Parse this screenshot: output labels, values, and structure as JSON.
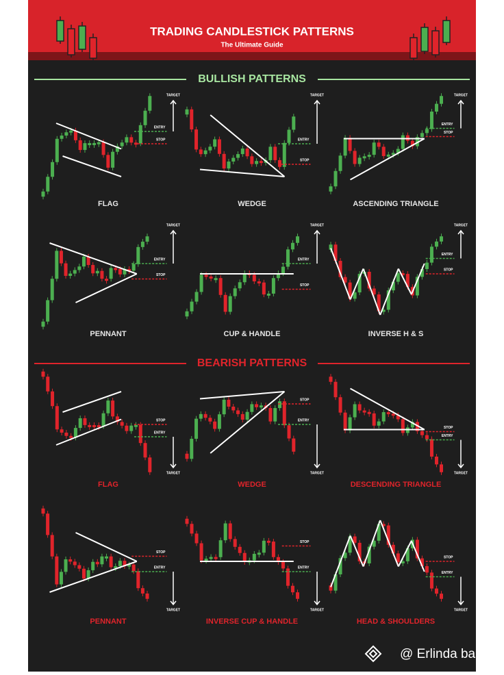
{
  "header": {
    "title": "TRADING CANDLESTICK PATTERNS",
    "subtitle": "The Ultimate Guide"
  },
  "sections": [
    {
      "title": "BULLISH PATTERNS",
      "patterns": [
        {
          "name": "FLAG",
          "target": "TARGET",
          "entry": "ENTRY",
          "stop": "STOP"
        },
        {
          "name": "WEDGE",
          "target": "TARGET",
          "entry": "ENTRY",
          "stop": "STOP"
        },
        {
          "name": "ASCENDING TRIANGLE",
          "target": "TARGET",
          "entry": "ENTRY",
          "stop": "STOP"
        },
        {
          "name": "PENNANT",
          "target": "TARGET",
          "entry": "ENTRY",
          "stop": "STOP"
        },
        {
          "name": "CUP & HANDLE",
          "target": "TARGET",
          "entry": "ENTRY",
          "stop": "STOP"
        },
        {
          "name": "INVERSE H & S",
          "target": "TARGET",
          "entry": "ENTRY",
          "stop": "STOP"
        }
      ]
    },
    {
      "title": "BEARISH PATTERNS",
      "patterns": [
        {
          "name": "FLAG",
          "target": "TARGET",
          "entry": "ENTRY",
          "stop": "STOP"
        },
        {
          "name": "WEDGE",
          "target": "TARGET",
          "entry": "ENTRY",
          "stop": "STOP"
        },
        {
          "name": "DESCENDING TRIANGLE",
          "target": "TARGET",
          "entry": "ENTRY",
          "stop": "STOP"
        },
        {
          "name": "PENNANT",
          "target": "TARGET",
          "entry": "ENTRY",
          "stop": "STOP"
        },
        {
          "name": "INVERSE CUP & HANDLE",
          "target": "TARGET",
          "entry": "ENTRY",
          "stop": "STOP"
        },
        {
          "name": "HEAD & SHOULDERS",
          "target": "TARGET",
          "entry": "ENTRY",
          "stop": "STOP"
        }
      ]
    }
  ],
  "watermark": "@ Erlinda babil"
}
